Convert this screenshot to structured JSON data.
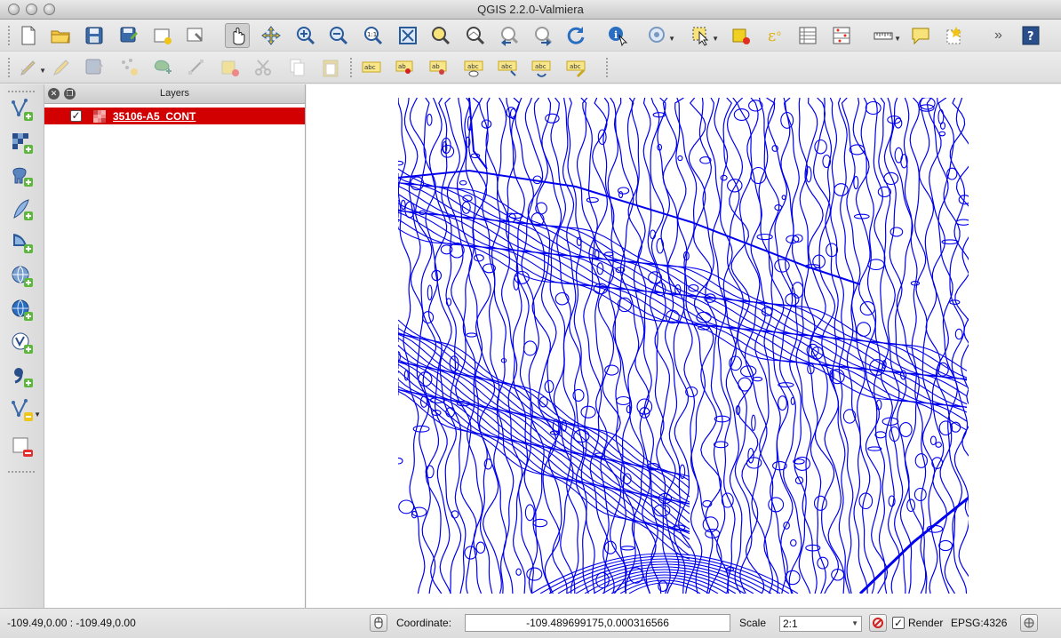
{
  "window": {
    "title": "QGIS 2.2.0-Valmiera"
  },
  "toolbar1": {
    "buttons": [
      {
        "name": "new-project-icon",
        "interactable": true
      },
      {
        "name": "open-project-icon",
        "interactable": true
      },
      {
        "name": "save-project-icon",
        "interactable": true
      },
      {
        "name": "save-as-icon",
        "interactable": true
      },
      {
        "name": "new-print-composer-icon",
        "interactable": true
      },
      {
        "name": "composer-manager-icon",
        "interactable": true
      },
      {
        "name": "pan-map-icon",
        "interactable": true
      },
      {
        "name": "pan-to-selection-icon",
        "interactable": true
      },
      {
        "name": "zoom-in-icon",
        "interactable": true
      },
      {
        "name": "zoom-out-icon",
        "interactable": true
      },
      {
        "name": "zoom-native-resolution-icon",
        "interactable": true
      },
      {
        "name": "zoom-full-icon",
        "interactable": true
      },
      {
        "name": "zoom-to-selection-icon",
        "interactable": true
      },
      {
        "name": "zoom-to-layer-icon",
        "interactable": true
      },
      {
        "name": "zoom-last-icon",
        "interactable": true
      },
      {
        "name": "zoom-next-icon",
        "interactable": true
      },
      {
        "name": "refresh-icon",
        "interactable": true
      },
      {
        "name": "identify-features-icon",
        "interactable": true
      },
      {
        "name": "map-tips-icon",
        "interactable": true
      },
      {
        "name": "select-features-icon",
        "interactable": true
      },
      {
        "name": "deselect-features-icon",
        "interactable": true
      },
      {
        "name": "field-calculator-icon",
        "interactable": true
      },
      {
        "name": "attribute-table-icon",
        "interactable": true
      },
      {
        "name": "statistical-summary-icon",
        "interactable": true
      },
      {
        "name": "measure-line-icon",
        "interactable": true
      },
      {
        "name": "text-annotation-icon",
        "interactable": true
      },
      {
        "name": "new-bookmark-icon",
        "interactable": true
      },
      {
        "name": "help-icon",
        "interactable": true
      }
    ]
  },
  "toolbar2": {
    "label_button_text": "abc"
  },
  "layers_panel": {
    "title": "Layers",
    "layers": [
      {
        "name": "35106-A5_CONT",
        "checked": true,
        "selected": true
      }
    ]
  },
  "map": {
    "contour_color": "#0000ee",
    "background_color": "#ffffff"
  },
  "statusbar": {
    "extent_text": "-109.49,0.00 : -109.49,0.00",
    "coordinate_label": "Coordinate:",
    "coordinate_value": "-109.489699175,0.000316566",
    "scale_label": "Scale",
    "scale_value": "2:1",
    "render_label": "Render",
    "render_checked": true,
    "crs_text": "EPSG:4326"
  },
  "colors": {
    "selected_layer_bg": "#d20000",
    "contour_blue": "#0000ee"
  }
}
